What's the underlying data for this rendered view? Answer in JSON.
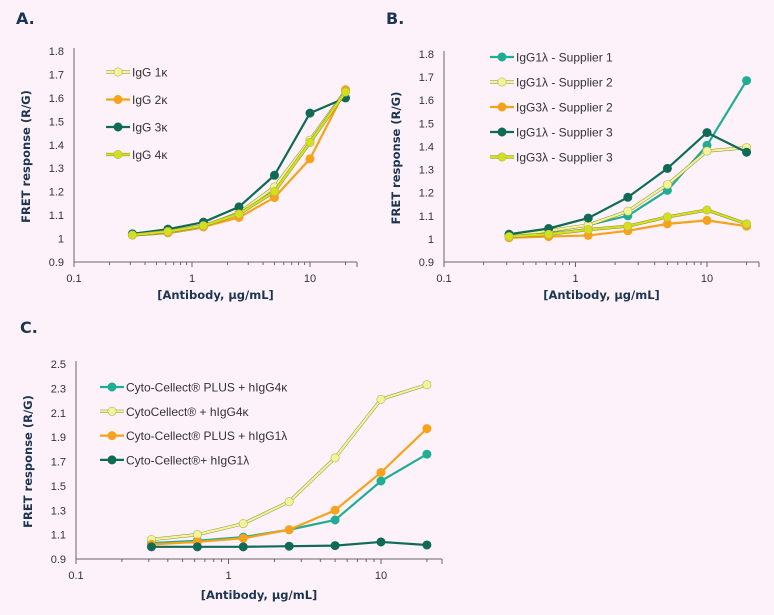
{
  "chart_data": [
    {
      "panel": "A.",
      "type": "line",
      "xscale": "log",
      "xlim": [
        0.1,
        25
      ],
      "ylim": [
        0.9,
        1.8
      ],
      "xticks": [
        "0.1",
        "1",
        "10"
      ],
      "yticks": [
        "0.9",
        "1",
        "1.1",
        "1.2",
        "1.3",
        "1.4",
        "1.5",
        "1.6",
        "1.7",
        "1.8"
      ],
      "xlabel": "[Antibody, µg/mL]",
      "ylabel": "FRET response (R/G)",
      "legend_placement": "top-left",
      "x": [
        0.3125,
        0.625,
        1.25,
        2.5,
        5,
        10,
        20
      ],
      "series": [
        {
          "name": "IgG 1κ",
          "color": "#f3f39a",
          "values": [
            1.015,
            1.025,
            1.05,
            1.11,
            1.22,
            1.42,
            1.63
          ]
        },
        {
          "name": "IgG 2κ",
          "color": "#f7a21b",
          "values": [
            1.015,
            1.025,
            1.05,
            1.09,
            1.175,
            1.34,
            1.635
          ]
        },
        {
          "name": "IgG 3κ",
          "color": "#0f6b55",
          "values": [
            1.02,
            1.04,
            1.07,
            1.135,
            1.27,
            1.535,
            1.6
          ]
        },
        {
          "name": "IgG 4κ",
          "color": "#d4e01c",
          "values": [
            1.015,
            1.03,
            1.055,
            1.105,
            1.2,
            1.41,
            1.625
          ]
        }
      ]
    },
    {
      "panel": "B.",
      "type": "line",
      "xscale": "log",
      "xlim": [
        0.1,
        25
      ],
      "ylim": [
        0.9,
        1.8
      ],
      "xticks": [
        "0.1",
        "1",
        "10"
      ],
      "yticks": [
        "0.9",
        "1",
        "1.1",
        "1.2",
        "1.3",
        "1.4",
        "1.5",
        "1.6",
        "1.7",
        "1.8"
      ],
      "xlabel": "[Antibody, µg/mL]",
      "ylabel": "FRET response (R/G)",
      "legend_placement": "top-left",
      "x": [
        0.3125,
        0.625,
        1.25,
        2.5,
        5,
        10,
        20
      ],
      "series": [
        {
          "name": "IgG1λ - Supplier 1",
          "color": "#1fae95",
          "values": [
            1.02,
            1.03,
            1.06,
            1.1,
            1.21,
            1.405,
            1.685
          ]
        },
        {
          "name": "IgG1λ - Supplier 2",
          "color": "#f3f39a",
          "values": [
            1.015,
            1.035,
            1.06,
            1.12,
            1.235,
            1.38,
            1.395
          ]
        },
        {
          "name": "IgG3λ - Supplier 2",
          "color": "#f7a21b",
          "values": [
            1.005,
            1.01,
            1.015,
            1.035,
            1.065,
            1.08,
            1.055
          ]
        },
        {
          "name": "IgG1λ - Supplier 3",
          "color": "#0f6b55",
          "values": [
            1.02,
            1.045,
            1.09,
            1.18,
            1.305,
            1.46,
            1.375
          ]
        },
        {
          "name": "IgG3λ - Supplier 3",
          "color": "#d4e01c",
          "values": [
            1.01,
            1.02,
            1.04,
            1.055,
            1.095,
            1.125,
            1.065
          ]
        }
      ]
    },
    {
      "panel": "C.",
      "type": "line",
      "xscale": "log",
      "xlim": [
        0.1,
        25
      ],
      "ylim": [
        0.9,
        2.5
      ],
      "xticks": [
        "0.1",
        "1",
        "10"
      ],
      "yticks": [
        "0.9",
        "1.1",
        "1.3",
        "1.5",
        "1.7",
        "1.9",
        "2.1",
        "2.3",
        "2.5"
      ],
      "xlabel": "[Antibody, µg/mL]",
      "ylabel": "FRET response (R/G)",
      "legend_placement": "top-left",
      "x": [
        0.3125,
        0.625,
        1.25,
        2.5,
        5,
        10,
        20
      ],
      "series": [
        {
          "name": "Cyto-Cellect® PLUS + hIgG4κ",
          "color": "#1fae95",
          "values": [
            1.03,
            1.05,
            1.08,
            1.14,
            1.22,
            1.54,
            1.76
          ]
        },
        {
          "name": "CytoCellect® + hIgG4κ",
          "color": "#f3f39a",
          "values": [
            1.06,
            1.1,
            1.19,
            1.37,
            1.73,
            2.21,
            2.33
          ]
        },
        {
          "name": "Cyto-Cellect® PLUS + hIgG1λ",
          "color": "#f7a21b",
          "values": [
            1.02,
            1.04,
            1.07,
            1.14,
            1.3,
            1.61,
            1.97
          ]
        },
        {
          "name": "Cyto-Cellect®+ hIgG1λ",
          "color": "#0f6b55",
          "values": [
            1.0,
            1.0,
            1.0,
            1.005,
            1.01,
            1.04,
            1.015
          ]
        }
      ]
    }
  ]
}
